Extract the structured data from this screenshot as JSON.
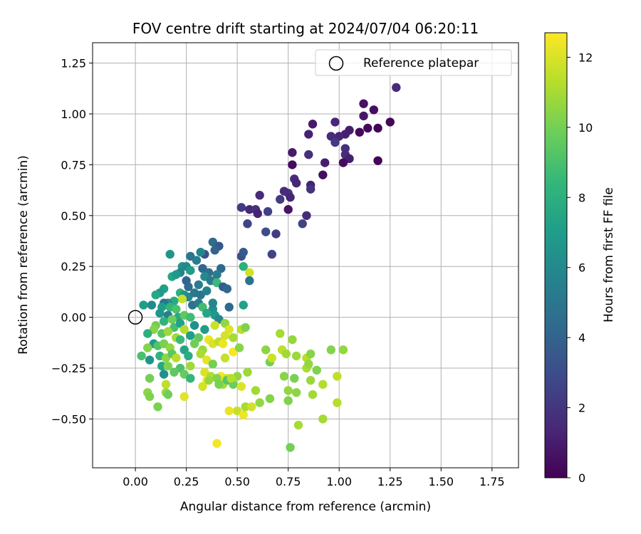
{
  "chart_data": {
    "type": "scatter",
    "title": "FOV centre drift starting at 2024/07/04 06:20:11",
    "xlabel": "Angular distance from reference (arcmin)",
    "ylabel": "Rotation from reference (arcmin)",
    "xlim": [
      -0.21,
      1.88
    ],
    "ylim": [
      -0.74,
      1.35
    ],
    "xticks": [
      0.0,
      0.25,
      0.5,
      0.75,
      1.0,
      1.25,
      1.5,
      1.75
    ],
    "xtick_labels": [
      "0.00",
      "0.25",
      "0.50",
      "0.75",
      "1.00",
      "1.25",
      "1.50",
      "1.75"
    ],
    "yticks": [
      -0.5,
      -0.25,
      0.0,
      0.25,
      0.5,
      0.75,
      1.0,
      1.25
    ],
    "ytick_labels": [
      "−0.50",
      "−0.25",
      "0.00",
      "0.25",
      "0.50",
      "0.75",
      "1.00",
      "1.25"
    ],
    "grid": true,
    "legend": {
      "position": "top-right",
      "entries": [
        "Reference platepar"
      ]
    },
    "reference_point": {
      "x": 0.0,
      "y": 0.0,
      "marker": "open-circle"
    },
    "colorbar": {
      "label": "Hours from first FF file",
      "colormap": "viridis",
      "range": [
        0,
        12.7
      ],
      "ticks": [
        0,
        2,
        4,
        6,
        8,
        10,
        12
      ],
      "tick_labels": [
        "0",
        "2",
        "4",
        "6",
        "8",
        "10",
        "12"
      ]
    },
    "points": [
      {
        "x": 1.28,
        "y": 1.13,
        "c": 1.5
      },
      {
        "x": 1.12,
        "y": 1.05,
        "c": 0.6
      },
      {
        "x": 1.17,
        "y": 1.02,
        "c": 0.5
      },
      {
        "x": 1.12,
        "y": 0.99,
        "c": 0.8
      },
      {
        "x": 1.25,
        "y": 0.96,
        "c": 0.2
      },
      {
        "x": 0.98,
        "y": 0.96,
        "c": 1.4
      },
      {
        "x": 0.87,
        "y": 0.95,
        "c": 0.9
      },
      {
        "x": 1.05,
        "y": 0.92,
        "c": 1.0
      },
      {
        "x": 1.14,
        "y": 0.93,
        "c": 0.3
      },
      {
        "x": 1.19,
        "y": 0.93,
        "c": 0.1
      },
      {
        "x": 1.1,
        "y": 0.91,
        "c": 0.3
      },
      {
        "x": 1.03,
        "y": 0.9,
        "c": 1.1
      },
      {
        "x": 1.0,
        "y": 0.89,
        "c": 1.3
      },
      {
        "x": 0.96,
        "y": 0.89,
        "c": 1.5
      },
      {
        "x": 0.85,
        "y": 0.9,
        "c": 1.2
      },
      {
        "x": 0.98,
        "y": 0.86,
        "c": 2.2
      },
      {
        "x": 1.03,
        "y": 0.83,
        "c": 1.8
      },
      {
        "x": 1.03,
        "y": 0.8,
        "c": 1.6
      },
      {
        "x": 1.05,
        "y": 0.78,
        "c": 1.1
      },
      {
        "x": 1.02,
        "y": 0.76,
        "c": 0.4
      },
      {
        "x": 1.19,
        "y": 0.77,
        "c": 0.1
      },
      {
        "x": 0.77,
        "y": 0.81,
        "c": 0.9
      },
      {
        "x": 0.85,
        "y": 0.8,
        "c": 1.7
      },
      {
        "x": 0.77,
        "y": 0.75,
        "c": 0.4
      },
      {
        "x": 0.93,
        "y": 0.76,
        "c": 1.0
      },
      {
        "x": 0.92,
        "y": 0.7,
        "c": 0.5
      },
      {
        "x": 0.78,
        "y": 0.68,
        "c": 1.6
      },
      {
        "x": 0.79,
        "y": 0.66,
        "c": 1.3
      },
      {
        "x": 0.86,
        "y": 0.65,
        "c": 1.2
      },
      {
        "x": 0.86,
        "y": 0.63,
        "c": 1.9
      },
      {
        "x": 0.75,
        "y": 0.61,
        "c": 2.0
      },
      {
        "x": 0.73,
        "y": 0.62,
        "c": 1.6
      },
      {
        "x": 0.71,
        "y": 0.58,
        "c": 2.3
      },
      {
        "x": 0.76,
        "y": 0.59,
        "c": 1.3
      },
      {
        "x": 0.61,
        "y": 0.6,
        "c": 1.6
      },
      {
        "x": 0.52,
        "y": 0.54,
        "c": 2.2
      },
      {
        "x": 0.56,
        "y": 0.53,
        "c": 1.4
      },
      {
        "x": 0.59,
        "y": 0.53,
        "c": 1.8
      },
      {
        "x": 0.6,
        "y": 0.51,
        "c": 1.2
      },
      {
        "x": 0.65,
        "y": 0.52,
        "c": 2.5
      },
      {
        "x": 0.75,
        "y": 0.53,
        "c": 0.7
      },
      {
        "x": 0.84,
        "y": 0.5,
        "c": 1.6
      },
      {
        "x": 0.82,
        "y": 0.46,
        "c": 2.6
      },
      {
        "x": 0.55,
        "y": 0.46,
        "c": 2.7
      },
      {
        "x": 0.64,
        "y": 0.42,
        "c": 2.9
      },
      {
        "x": 0.69,
        "y": 0.41,
        "c": 2.3
      },
      {
        "x": 0.67,
        "y": 0.31,
        "c": 2.6
      },
      {
        "x": 0.52,
        "y": 0.3,
        "c": 3.1
      },
      {
        "x": 0.53,
        "y": 0.32,
        "c": 3.6
      },
      {
        "x": 0.38,
        "y": 0.37,
        "c": 4.5
      },
      {
        "x": 0.41,
        "y": 0.35,
        "c": 3.5
      },
      {
        "x": 0.39,
        "y": 0.33,
        "c": 4.0
      },
      {
        "x": 0.34,
        "y": 0.31,
        "c": 3.2
      },
      {
        "x": 0.32,
        "y": 0.32,
        "c": 5.8
      },
      {
        "x": 0.17,
        "y": 0.31,
        "c": 6.6
      },
      {
        "x": 0.27,
        "y": 0.3,
        "c": 5.0
      },
      {
        "x": 0.3,
        "y": 0.28,
        "c": 5.5
      },
      {
        "x": 0.53,
        "y": 0.25,
        "c": 8.0
      },
      {
        "x": 0.56,
        "y": 0.22,
        "c": 11.8
      },
      {
        "x": 0.56,
        "y": 0.18,
        "c": 4.8
      },
      {
        "x": 0.23,
        "y": 0.25,
        "c": 6.5
      },
      {
        "x": 0.25,
        "y": 0.25,
        "c": 6.0
      },
      {
        "x": 0.22,
        "y": 0.22,
        "c": 5.7
      },
      {
        "x": 0.27,
        "y": 0.23,
        "c": 7.0
      },
      {
        "x": 0.33,
        "y": 0.24,
        "c": 4.2
      },
      {
        "x": 0.36,
        "y": 0.22,
        "c": 4.6
      },
      {
        "x": 0.42,
        "y": 0.24,
        "c": 4.3
      },
      {
        "x": 0.4,
        "y": 0.21,
        "c": 5.3
      },
      {
        "x": 0.18,
        "y": 0.2,
        "c": 7.5
      },
      {
        "x": 0.2,
        "y": 0.21,
        "c": 6.8
      },
      {
        "x": 0.34,
        "y": 0.2,
        "c": 6.1
      },
      {
        "x": 0.37,
        "y": 0.18,
        "c": 5.2
      },
      {
        "x": 0.25,
        "y": 0.18,
        "c": 4.0
      },
      {
        "x": 0.26,
        "y": 0.15,
        "c": 4.4
      },
      {
        "x": 0.31,
        "y": 0.16,
        "c": 5.4
      },
      {
        "x": 0.4,
        "y": 0.17,
        "c": 8.6
      },
      {
        "x": 0.43,
        "y": 0.15,
        "c": 3.8
      },
      {
        "x": 0.45,
        "y": 0.14,
        "c": 4.2
      },
      {
        "x": 0.14,
        "y": 0.14,
        "c": 7.2
      },
      {
        "x": 0.12,
        "y": 0.12,
        "c": 6.9
      },
      {
        "x": 0.1,
        "y": 0.11,
        "c": 7.6
      },
      {
        "x": 0.22,
        "y": 0.12,
        "c": 8.0
      },
      {
        "x": 0.24,
        "y": 0.11,
        "c": 6.4
      },
      {
        "x": 0.26,
        "y": 0.1,
        "c": 5.9
      },
      {
        "x": 0.29,
        "y": 0.12,
        "c": 5.1
      },
      {
        "x": 0.32,
        "y": 0.11,
        "c": 4.9
      },
      {
        "x": 0.35,
        "y": 0.13,
        "c": 5.6
      },
      {
        "x": 0.23,
        "y": 0.09,
        "c": 11.6
      },
      {
        "x": 0.19,
        "y": 0.08,
        "c": 7.8
      },
      {
        "x": 0.16,
        "y": 0.07,
        "c": 6.3
      },
      {
        "x": 0.14,
        "y": 0.07,
        "c": 5.0
      },
      {
        "x": 0.13,
        "y": 0.05,
        "c": 7.1
      },
      {
        "x": 0.04,
        "y": 0.06,
        "c": 7.0
      },
      {
        "x": 0.08,
        "y": 0.06,
        "c": 6.0
      },
      {
        "x": 0.17,
        "y": 0.05,
        "c": 8.3
      },
      {
        "x": 0.2,
        "y": 0.04,
        "c": 9.0
      },
      {
        "x": 0.28,
        "y": 0.06,
        "c": 4.7
      },
      {
        "x": 0.31,
        "y": 0.07,
        "c": 5.3
      },
      {
        "x": 0.33,
        "y": 0.05,
        "c": 8.8
      },
      {
        "x": 0.38,
        "y": 0.04,
        "c": 6.2
      },
      {
        "x": 0.38,
        "y": 0.07,
        "c": 5.8
      },
      {
        "x": 0.46,
        "y": 0.05,
        "c": 4.3
      },
      {
        "x": 0.53,
        "y": 0.06,
        "c": 7.2
      },
      {
        "x": 0.12,
        "y": 0.02,
        "c": 6.6
      },
      {
        "x": 0.16,
        "y": 0.01,
        "c": 5.5
      },
      {
        "x": 0.21,
        "y": 0.0,
        "c": 7.7
      },
      {
        "x": 0.24,
        "y": 0.01,
        "c": 9.5
      },
      {
        "x": 0.27,
        "y": 0.0,
        "c": 8.7
      },
      {
        "x": 0.35,
        "y": 0.02,
        "c": 7.5
      },
      {
        "x": 0.39,
        "y": 0.01,
        "c": 6.8
      },
      {
        "x": 0.41,
        "y": -0.01,
        "c": 5.9
      },
      {
        "x": 0.14,
        "y": -0.02,
        "c": 8.2
      },
      {
        "x": 0.18,
        "y": -0.01,
        "c": 9.8
      },
      {
        "x": 0.1,
        "y": -0.04,
        "c": 10.0
      },
      {
        "x": 0.09,
        "y": -0.06,
        "c": 10.4
      },
      {
        "x": 0.19,
        "y": -0.05,
        "c": 8.9
      },
      {
        "x": 0.22,
        "y": -0.03,
        "c": 7.3
      },
      {
        "x": 0.24,
        "y": -0.06,
        "c": 11.2
      },
      {
        "x": 0.29,
        "y": -0.04,
        "c": 6.4
      },
      {
        "x": 0.34,
        "y": -0.06,
        "c": 7.0
      },
      {
        "x": 0.39,
        "y": -0.04,
        "c": 11.7
      },
      {
        "x": 0.44,
        "y": -0.03,
        "c": 10.6
      },
      {
        "x": 0.46,
        "y": -0.06,
        "c": 12.1
      },
      {
        "x": 0.52,
        "y": -0.06,
        "c": 11.4
      },
      {
        "x": 0.54,
        "y": -0.05,
        "c": 10.2
      },
      {
        "x": 0.06,
        "y": -0.08,
        "c": 8.0
      },
      {
        "x": 0.13,
        "y": -0.08,
        "c": 9.3
      },
      {
        "x": 0.16,
        "y": -0.07,
        "c": 10.8
      },
      {
        "x": 0.2,
        "y": -0.1,
        "c": 10.9
      },
      {
        "x": 0.22,
        "y": -0.11,
        "c": 8.6
      },
      {
        "x": 0.27,
        "y": -0.09,
        "c": 7.1
      },
      {
        "x": 0.31,
        "y": -0.1,
        "c": 9.6
      },
      {
        "x": 0.36,
        "y": -0.11,
        "c": 12.3
      },
      {
        "x": 0.38,
        "y": -0.13,
        "c": 12.0
      },
      {
        "x": 0.41,
        "y": -0.12,
        "c": 11.5
      },
      {
        "x": 0.44,
        "y": -0.09,
        "c": 11.9
      },
      {
        "x": 0.48,
        "y": -0.1,
        "c": 11.0
      },
      {
        "x": 0.09,
        "y": -0.13,
        "c": 6.8
      },
      {
        "x": 0.11,
        "y": -0.14,
        "c": 9.2
      },
      {
        "x": 0.14,
        "y": -0.13,
        "c": 10.1
      },
      {
        "x": 0.17,
        "y": -0.15,
        "c": 10.6
      },
      {
        "x": 0.24,
        "y": -0.16,
        "c": 7.4
      },
      {
        "x": 0.29,
        "y": -0.13,
        "c": 9.9
      },
      {
        "x": 0.33,
        "y": -0.16,
        "c": 10.7
      },
      {
        "x": 0.43,
        "y": -0.13,
        "c": 12.4
      },
      {
        "x": 0.03,
        "y": -0.19,
        "c": 9.0
      },
      {
        "x": 0.06,
        "y": -0.15,
        "c": 10.3
      },
      {
        "x": 0.07,
        "y": -0.21,
        "c": 6.5
      },
      {
        "x": 0.12,
        "y": -0.19,
        "c": 8.2
      },
      {
        "x": 0.15,
        "y": -0.2,
        "c": 10.5
      },
      {
        "x": 0.18,
        "y": -0.18,
        "c": 9.4
      },
      {
        "x": 0.2,
        "y": -0.2,
        "c": 11.3
      },
      {
        "x": 0.26,
        "y": -0.19,
        "c": 7.9
      },
      {
        "x": 0.32,
        "y": -0.18,
        "c": 11.1
      },
      {
        "x": 0.35,
        "y": -0.21,
        "c": 12.2
      },
      {
        "x": 0.38,
        "y": -0.23,
        "c": 10.0
      },
      {
        "x": 0.44,
        "y": -0.2,
        "c": 11.6
      },
      {
        "x": 0.48,
        "y": -0.17,
        "c": 12.6
      },
      {
        "x": 0.51,
        "y": -0.15,
        "c": 10.4
      },
      {
        "x": 0.55,
        "y": -0.27,
        "c": 10.8
      },
      {
        "x": 0.13,
        "y": -0.24,
        "c": 7.6
      },
      {
        "x": 0.16,
        "y": -0.24,
        "c": 10.2
      },
      {
        "x": 0.22,
        "y": -0.25,
        "c": 9.1
      },
      {
        "x": 0.27,
        "y": -0.24,
        "c": 10.9
      },
      {
        "x": 0.34,
        "y": -0.27,
        "c": 12.0
      },
      {
        "x": 0.37,
        "y": -0.29,
        "c": 11.2
      },
      {
        "x": 0.42,
        "y": -0.29,
        "c": 12.5
      },
      {
        "x": 0.45,
        "y": -0.3,
        "c": 11.8
      },
      {
        "x": 0.5,
        "y": -0.29,
        "c": 10.6
      },
      {
        "x": 0.07,
        "y": -0.3,
        "c": 10.0
      },
      {
        "x": 0.14,
        "y": -0.28,
        "c": 6.3
      },
      {
        "x": 0.19,
        "y": -0.27,
        "c": 9.5
      },
      {
        "x": 0.24,
        "y": -0.28,
        "c": 9.7
      },
      {
        "x": 0.27,
        "y": -0.3,
        "c": 8.4
      },
      {
        "x": 0.35,
        "y": -0.31,
        "c": 12.7
      },
      {
        "x": 0.4,
        "y": -0.3,
        "c": 10.3
      },
      {
        "x": 0.43,
        "y": -0.33,
        "c": 11.0
      },
      {
        "x": 0.45,
        "y": -0.31,
        "c": 9.3
      },
      {
        "x": 0.48,
        "y": -0.33,
        "c": 9.8
      },
      {
        "x": 0.52,
        "y": -0.34,
        "c": 12.1
      },
      {
        "x": 0.15,
        "y": -0.33,
        "c": 11.5
      },
      {
        "x": 0.33,
        "y": -0.34,
        "c": 11.9
      },
      {
        "x": 0.36,
        "y": -0.31,
        "c": 10.7
      },
      {
        "x": 0.41,
        "y": -0.33,
        "c": 10.1
      },
      {
        "x": 0.47,
        "y": -0.3,
        "c": 11.3
      },
      {
        "x": 0.06,
        "y": -0.37,
        "c": 10.5
      },
      {
        "x": 0.07,
        "y": -0.39,
        "c": 10.2
      },
      {
        "x": 0.15,
        "y": -0.37,
        "c": 10.8
      },
      {
        "x": 0.16,
        "y": -0.38,
        "c": 9.9
      },
      {
        "x": 0.24,
        "y": -0.39,
        "c": 12.2
      },
      {
        "x": 0.11,
        "y": -0.44,
        "c": 10.1
      },
      {
        "x": 0.5,
        "y": -0.46,
        "c": 11.6
      },
      {
        "x": 0.46,
        "y": -0.46,
        "c": 12.3
      },
      {
        "x": 0.53,
        "y": -0.48,
        "c": 12.4
      },
      {
        "x": 0.54,
        "y": -0.44,
        "c": 11.0
      },
      {
        "x": 0.57,
        "y": -0.44,
        "c": 11.8
      },
      {
        "x": 0.59,
        "y": -0.36,
        "c": 10.9
      },
      {
        "x": 0.61,
        "y": -0.42,
        "c": 10.6
      },
      {
        "x": 0.64,
        "y": -0.16,
        "c": 10.5
      },
      {
        "x": 0.66,
        "y": -0.22,
        "c": 10.0
      },
      {
        "x": 0.66,
        "y": -0.4,
        "c": 10.3
      },
      {
        "x": 0.67,
        "y": -0.2,
        "c": 11.7
      },
      {
        "x": 0.71,
        "y": -0.08,
        "c": 11.0
      },
      {
        "x": 0.72,
        "y": -0.16,
        "c": 11.4
      },
      {
        "x": 0.73,
        "y": -0.29,
        "c": 10.4
      },
      {
        "x": 0.74,
        "y": -0.18,
        "c": 10.9
      },
      {
        "x": 0.75,
        "y": -0.36,
        "c": 10.6
      },
      {
        "x": 0.75,
        "y": -0.41,
        "c": 10.2
      },
      {
        "x": 0.77,
        "y": -0.11,
        "c": 10.7
      },
      {
        "x": 0.79,
        "y": -0.19,
        "c": 10.8
      },
      {
        "x": 0.78,
        "y": -0.3,
        "c": 10.1
      },
      {
        "x": 0.79,
        "y": -0.37,
        "c": 10.5
      },
      {
        "x": 0.8,
        "y": -0.53,
        "c": 11.0
      },
      {
        "x": 0.84,
        "y": -0.2,
        "c": 11.3
      },
      {
        "x": 0.84,
        "y": -0.25,
        "c": 11.1
      },
      {
        "x": 0.85,
        "y": -0.23,
        "c": 10.6
      },
      {
        "x": 0.86,
        "y": -0.18,
        "c": 10.4
      },
      {
        "x": 0.86,
        "y": -0.31,
        "c": 10.8
      },
      {
        "x": 0.87,
        "y": -0.38,
        "c": 10.9
      },
      {
        "x": 0.89,
        "y": -0.26,
        "c": 10.2
      },
      {
        "x": 0.76,
        "y": -0.64,
        "c": 10.0
      },
      {
        "x": 0.92,
        "y": -0.33,
        "c": 11.2
      },
      {
        "x": 0.92,
        "y": -0.5,
        "c": 11.0
      },
      {
        "x": 0.96,
        "y": -0.16,
        "c": 10.3
      },
      {
        "x": 0.99,
        "y": -0.29,
        "c": 11.5
      },
      {
        "x": 0.99,
        "y": -0.42,
        "c": 11.3
      },
      {
        "x": 1.02,
        "y": -0.16,
        "c": 10.6
      },
      {
        "x": 0.4,
        "y": -0.62,
        "c": 12.5
      }
    ]
  }
}
